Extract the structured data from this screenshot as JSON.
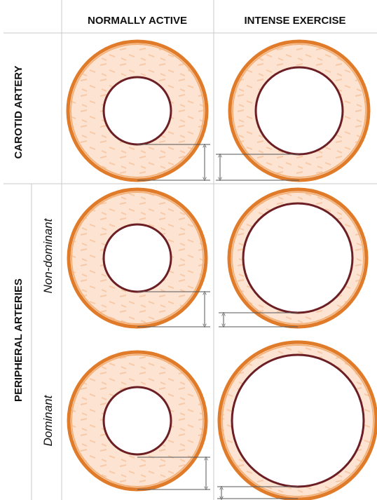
{
  "columns": {
    "normal": "NORMALLY ACTIVE",
    "exercise": "INTENSE EXERCISE"
  },
  "rows": {
    "carotid": "CAROTID ARTERY",
    "peripheral": "PERIPHERAL ARTERIES"
  },
  "subrows": {
    "non_dominant": "Non-dominant",
    "dominant": "Dominant"
  }
}
